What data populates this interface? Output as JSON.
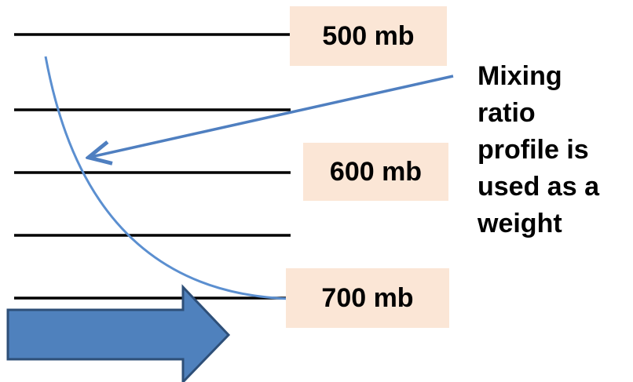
{
  "levels": {
    "l500": "500 mb",
    "l600": "600 mb",
    "l700": "700 mb"
  },
  "annotation": {
    "lines": [
      "Mixing",
      "ratio",
      "profile is",
      "used as a",
      "weight"
    ]
  },
  "colors": {
    "curve": "#5b8fd0",
    "pointer_arrow": "#4f7fc0",
    "block_arrow_fill": "#4f81bd",
    "block_arrow_stroke": "#2e4f78",
    "label_bg": "#fbe6d6"
  }
}
